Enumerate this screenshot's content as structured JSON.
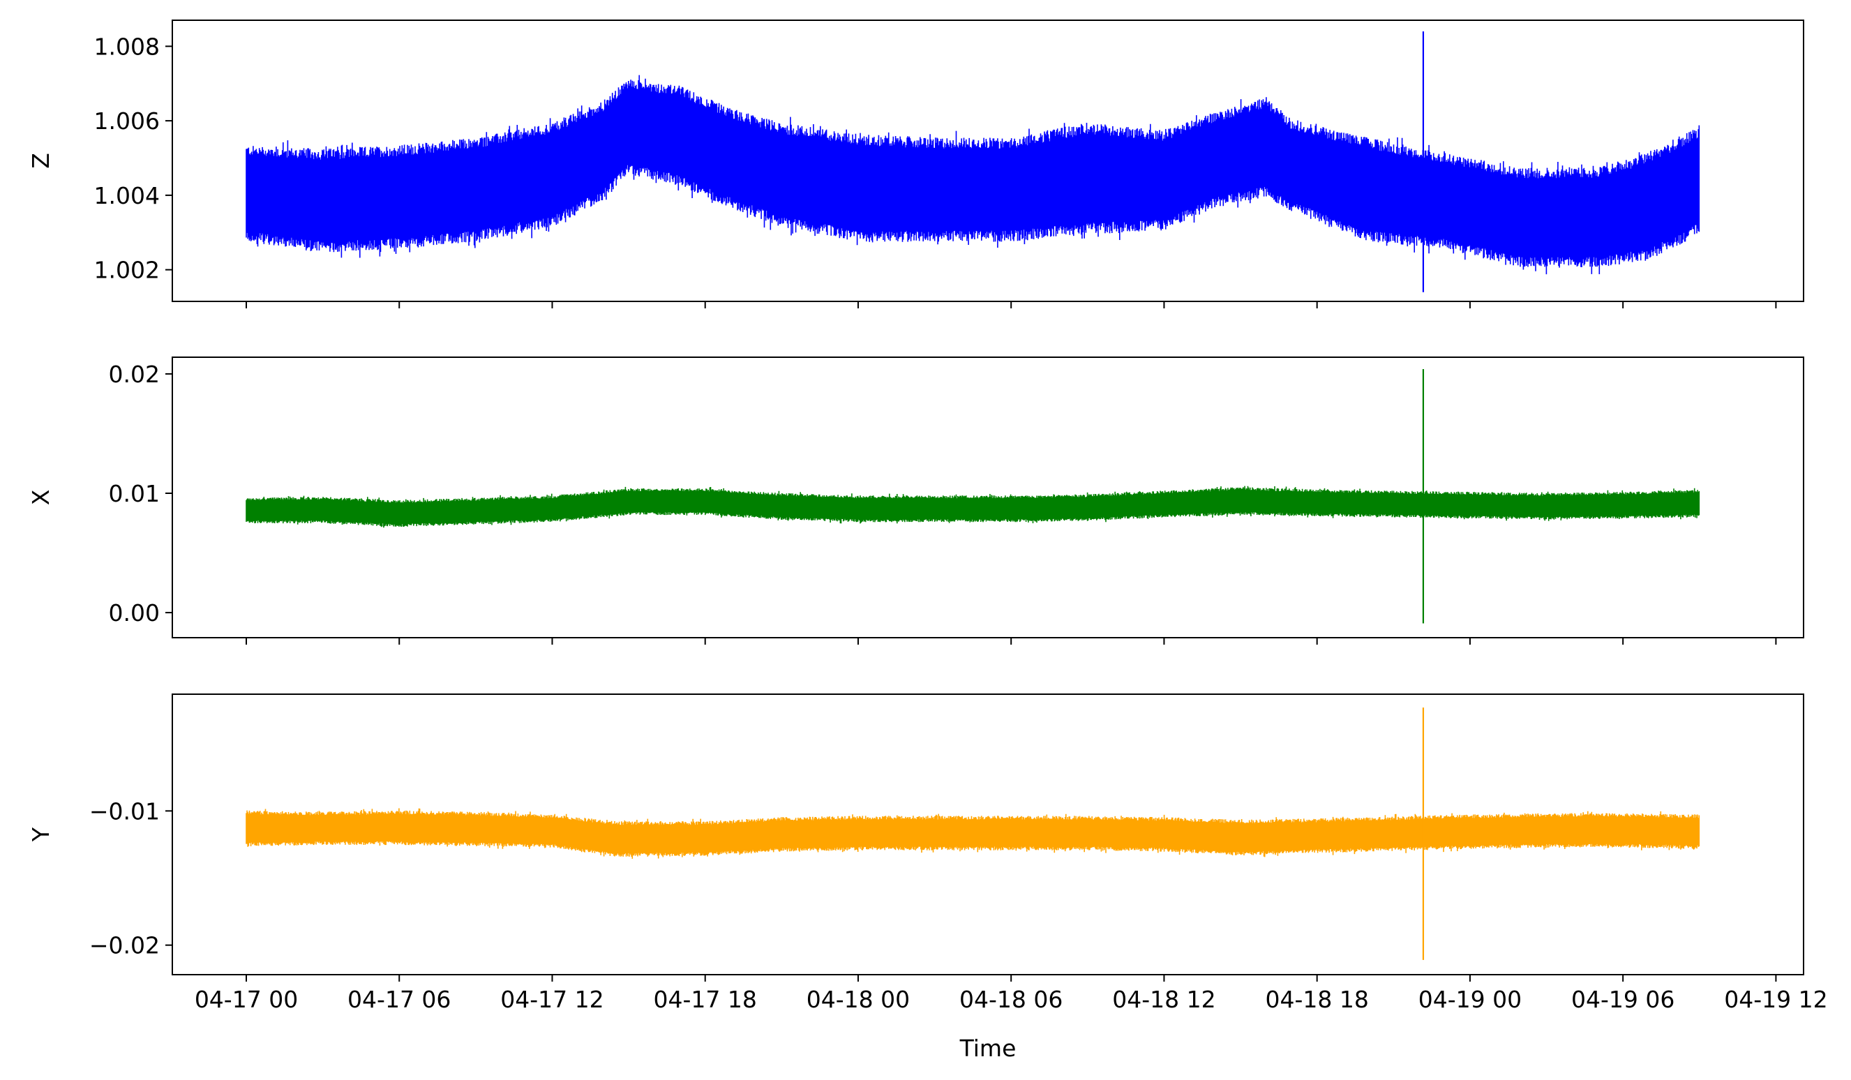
{
  "chart_data": [
    {
      "type": "line",
      "ylabel": "Z",
      "xlabel": "",
      "color": "#0000ff",
      "x_range": [
        "04-16 21:03",
        "04-19 13:57"
      ],
      "ylim": [
        1.00115,
        1.0087
      ],
      "yticks": [
        1.002,
        1.004,
        1.006,
        1.008
      ],
      "ytick_labels": [
        "1.002",
        "1.004",
        "1.006",
        "1.008"
      ],
      "xticks_labels_visible": false,
      "series": [
        {
          "band": [
            {
              "x": "04-17 00:00",
              "low": 1.0029,
              "high": 1.0052
            },
            {
              "x": "04-17 03:00",
              "low": 1.0026,
              "high": 1.0051
            },
            {
              "x": "04-17 06:00",
              "low": 1.0027,
              "high": 1.0052
            },
            {
              "x": "04-17 09:00",
              "low": 1.0029,
              "high": 1.0054
            },
            {
              "x": "04-17 12:00",
              "low": 1.0033,
              "high": 1.0058
            },
            {
              "x": "04-17 14:00",
              "low": 1.004,
              "high": 1.0064
            },
            {
              "x": "04-17 15:00",
              "low": 1.0047,
              "high": 1.007
            },
            {
              "x": "04-17 17:00",
              "low": 1.0044,
              "high": 1.0068
            },
            {
              "x": "04-17 19:00",
              "low": 1.0038,
              "high": 1.0062
            },
            {
              "x": "04-17 21:00",
              "low": 1.0033,
              "high": 1.0058
            },
            {
              "x": "04-18 00:00",
              "low": 1.0029,
              "high": 1.0055
            },
            {
              "x": "04-18 03:00",
              "low": 1.0029,
              "high": 1.0054
            },
            {
              "x": "04-18 06:00",
              "low": 1.0029,
              "high": 1.0054
            },
            {
              "x": "04-18 09:00",
              "low": 1.0031,
              "high": 1.0058
            },
            {
              "x": "04-18 12:00",
              "low": 1.0032,
              "high": 1.0056
            },
            {
              "x": "04-18 14:00",
              "low": 1.0038,
              "high": 1.0061
            },
            {
              "x": "04-18 16:00",
              "low": 1.0041,
              "high": 1.0065
            },
            {
              "x": "04-18 17:00",
              "low": 1.0037,
              "high": 1.0059
            },
            {
              "x": "04-18 20:00",
              "low": 1.0029,
              "high": 1.0054
            },
            {
              "x": "04-18 23:00",
              "low": 1.0027,
              "high": 1.005
            },
            {
              "x": "04-19 02:00",
              "low": 1.0022,
              "high": 1.0046
            },
            {
              "x": "04-19 05:00",
              "low": 1.0022,
              "high": 1.0046
            },
            {
              "x": "04-19 07:00",
              "low": 1.0024,
              "high": 1.005
            },
            {
              "x": "04-19 09:00",
              "low": 1.0031,
              "high": 1.0057
            }
          ],
          "spike": {
            "x": "04-18 22:10",
            "min": 1.0014,
            "max": 1.0084
          }
        }
      ]
    },
    {
      "type": "line",
      "ylabel": "X",
      "xlabel": "",
      "color": "#008000",
      "x_range": [
        "04-16 21:03",
        "04-19 13:57"
      ],
      "ylim": [
        -0.0021,
        0.0214
      ],
      "yticks": [
        0.0,
        0.01,
        0.02
      ],
      "ytick_labels": [
        "0.00",
        "0.01",
        "0.02"
      ],
      "xticks_labels_visible": false,
      "series": [
        {
          "band": [
            {
              "x": "04-17 00:00",
              "low": 0.0076,
              "high": 0.0095
            },
            {
              "x": "04-17 03:00",
              "low": 0.0076,
              "high": 0.0096
            },
            {
              "x": "04-17 06:00",
              "low": 0.0073,
              "high": 0.0093
            },
            {
              "x": "04-17 09:00",
              "low": 0.0075,
              "high": 0.0095
            },
            {
              "x": "04-17 12:00",
              "low": 0.0077,
              "high": 0.0097
            },
            {
              "x": "04-17 15:00",
              "low": 0.0083,
              "high": 0.0103
            },
            {
              "x": "04-17 18:00",
              "low": 0.0083,
              "high": 0.0103
            },
            {
              "x": "04-17 21:00",
              "low": 0.0079,
              "high": 0.0099
            },
            {
              "x": "04-18 00:00",
              "low": 0.0077,
              "high": 0.0097
            },
            {
              "x": "04-18 06:00",
              "low": 0.0077,
              "high": 0.0097
            },
            {
              "x": "04-18 09:00",
              "low": 0.0078,
              "high": 0.0098
            },
            {
              "x": "04-18 12:00",
              "low": 0.0081,
              "high": 0.0101
            },
            {
              "x": "04-18 15:00",
              "low": 0.0083,
              "high": 0.0104
            },
            {
              "x": "04-18 18:00",
              "low": 0.0082,
              "high": 0.0102
            },
            {
              "x": "04-19 00:00",
              "low": 0.008,
              "high": 0.01
            },
            {
              "x": "04-19 03:00",
              "low": 0.0079,
              "high": 0.0099
            },
            {
              "x": "04-19 06:00",
              "low": 0.008,
              "high": 0.01
            },
            {
              "x": "04-19 09:00",
              "low": 0.0081,
              "high": 0.0102
            }
          ],
          "spike": {
            "x": "04-18 22:10",
            "min": -0.0009,
            "max": 0.0204
          }
        }
      ]
    },
    {
      "type": "line",
      "ylabel": "Y",
      "xlabel": "Time",
      "color": "#ffa500",
      "x_range": [
        "04-16 21:03",
        "04-19 13:57"
      ],
      "ylim": [
        -0.0222,
        -0.0013
      ],
      "yticks": [
        -0.02,
        -0.01
      ],
      "ytick_labels": [
        "−0.02",
        "−0.01"
      ],
      "xticks": [
        "04-17 00:00",
        "04-17 06:00",
        "04-17 12:00",
        "04-17 18:00",
        "04-18 00:00",
        "04-18 06:00",
        "04-18 12:00",
        "04-18 18:00",
        "04-19 00:00",
        "04-19 06:00",
        "04-19 12:00"
      ],
      "xtick_labels": [
        "04-17 00",
        "04-17 06",
        "04-17 12",
        "04-17 18",
        "04-18 00",
        "04-18 06",
        "04-18 12",
        "04-18 18",
        "04-19 00",
        "04-19 06",
        "04-19 12"
      ],
      "series": [
        {
          "band": [
            {
              "x": "04-17 00:00",
              "low": -0.0125,
              "high": -0.0101
            },
            {
              "x": "04-17 03:00",
              "low": -0.0124,
              "high": -0.0102
            },
            {
              "x": "04-17 06:00",
              "low": -0.0124,
              "high": -0.0101
            },
            {
              "x": "04-17 09:00",
              "low": -0.0125,
              "high": -0.0102
            },
            {
              "x": "04-17 12:00",
              "low": -0.0126,
              "high": -0.0104
            },
            {
              "x": "04-17 14:30",
              "low": -0.0133,
              "high": -0.0109
            },
            {
              "x": "04-17 18:00",
              "low": -0.0132,
              "high": -0.0109
            },
            {
              "x": "04-17 21:00",
              "low": -0.0129,
              "high": -0.0106
            },
            {
              "x": "04-18 00:00",
              "low": -0.0128,
              "high": -0.0105
            },
            {
              "x": "04-18 06:00",
              "low": -0.0128,
              "high": -0.0105
            },
            {
              "x": "04-18 09:00",
              "low": -0.0128,
              "high": -0.0105
            },
            {
              "x": "04-18 12:00",
              "low": -0.0129,
              "high": -0.0106
            },
            {
              "x": "04-18 15:00",
              "low": -0.0132,
              "high": -0.0108
            },
            {
              "x": "04-18 18:00",
              "low": -0.013,
              "high": -0.0107
            },
            {
              "x": "04-19 00:00",
              "low": -0.0127,
              "high": -0.0104
            },
            {
              "x": "04-19 03:00",
              "low": -0.0126,
              "high": -0.0103
            },
            {
              "x": "04-19 06:00",
              "low": -0.0126,
              "high": -0.0103
            },
            {
              "x": "04-19 09:00",
              "low": -0.0127,
              "high": -0.0104
            }
          ],
          "spike": {
            "x": "04-18 22:10",
            "min": -0.0211,
            "max": -0.0023
          }
        }
      ]
    }
  ]
}
